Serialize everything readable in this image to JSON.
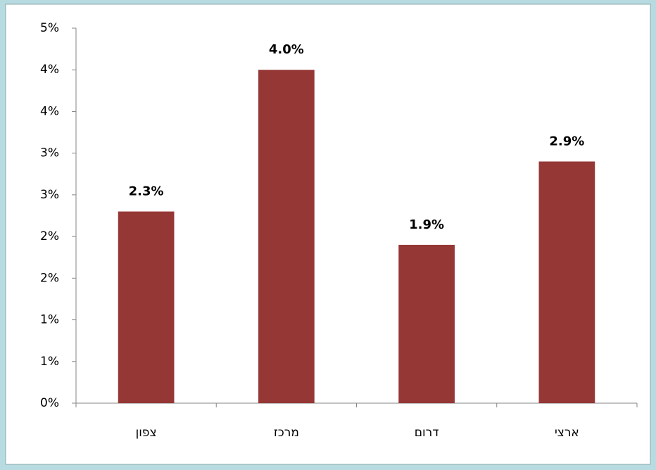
{
  "chart_data": {
    "type": "bar",
    "categories": [
      "צפון",
      "מרכז",
      "דרום",
      "ארצי"
    ],
    "values": [
      2.3,
      4.0,
      1.9,
      2.9
    ],
    "value_labels": [
      "2.3%",
      "4.0%",
      "1.9%",
      "2.9%"
    ],
    "color": "#953735",
    "ylim": [
      0,
      4.5
    ],
    "yticks": [
      {
        "value": 0,
        "label": "0%"
      },
      {
        "value": 0.5,
        "label": "1%"
      },
      {
        "value": 1,
        "label": "1%"
      },
      {
        "value": 1.5,
        "label": "2%"
      },
      {
        "value": 2,
        "label": "2%"
      },
      {
        "value": 2.5,
        "label": "3%"
      },
      {
        "value": 3,
        "label": "3%"
      },
      {
        "value": 3.5,
        "label": "4%"
      },
      {
        "value": 4,
        "label": "4%"
      },
      {
        "value": 4.5,
        "label": "5%"
      }
    ],
    "grid": false
  }
}
